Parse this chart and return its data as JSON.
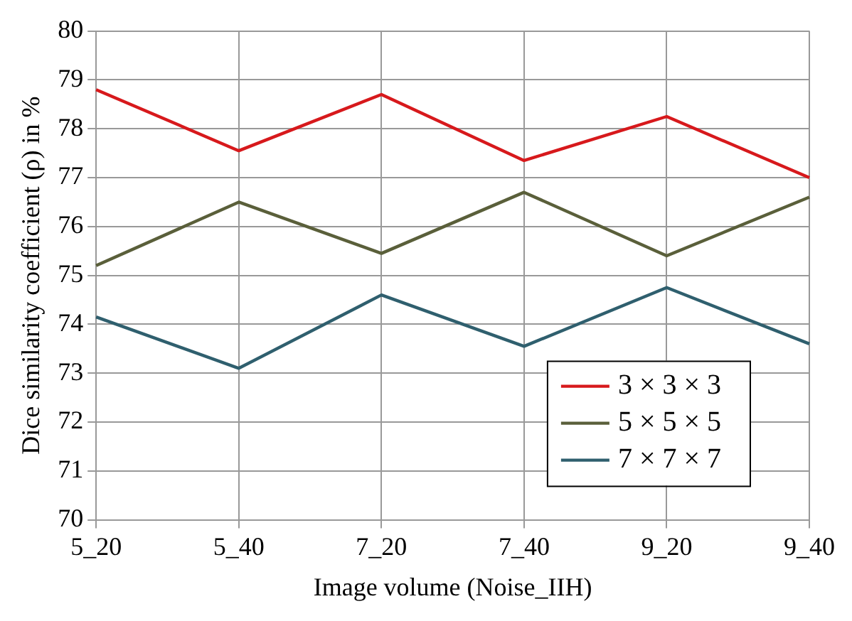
{
  "chart_data": {
    "type": "line",
    "xlabel": "Image volume (Noise_IIH)",
    "ylabel": "Dice similarity coefficient (ρ) in %",
    "categories": [
      "5_20",
      "5_40",
      "7_20",
      "7_40",
      "9_20",
      "9_40"
    ],
    "series": [
      {
        "name": "3 × 3 × 3",
        "color": "#d7191c",
        "values": [
          78.8,
          77.55,
          78.7,
          77.35,
          78.25,
          77.0
        ]
      },
      {
        "name": "5 × 5 × 5",
        "color": "#5a5f3a",
        "values": [
          75.2,
          76.5,
          75.45,
          76.7,
          75.4,
          76.6
        ]
      },
      {
        "name": "7 × 7 × 7",
        "color": "#2f5f6e",
        "values": [
          74.15,
          73.1,
          74.6,
          73.55,
          74.75,
          73.6
        ]
      }
    ],
    "ylim": [
      70,
      80
    ],
    "yticks": [
      70,
      71,
      72,
      73,
      74,
      75,
      76,
      77,
      78,
      79,
      80
    ],
    "grid": true,
    "legend": "bottom right",
    "marker": "none",
    "line_style": "solid"
  }
}
